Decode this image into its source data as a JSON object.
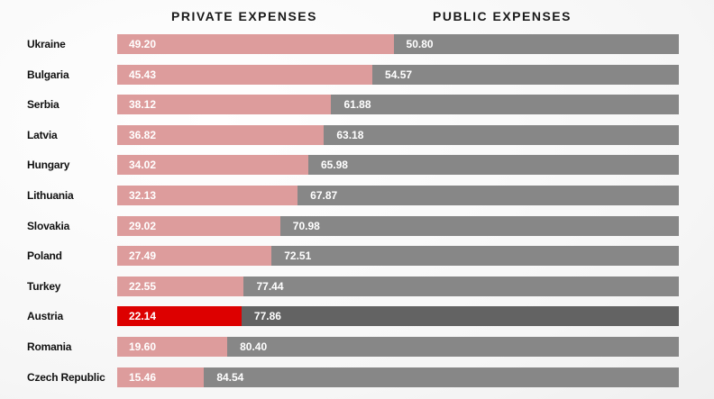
{
  "chart_data": {
    "type": "bar",
    "orientation": "horizontal",
    "stacked": true,
    "title": "",
    "xlim": [
      0,
      100
    ],
    "grid": false,
    "legend_placement": "top",
    "categories": [
      "Ukraine",
      "Bulgaria",
      "Serbia",
      "Latvia",
      "Hungary",
      "Lithuania",
      "Slovakia",
      "Poland",
      "Turkey",
      "Austria",
      "Romania",
      "Czech Republic"
    ],
    "series": [
      {
        "name": "PRIVATE EXPENSES",
        "color": "#dd9c9c",
        "values": [
          49.2,
          45.43,
          38.12,
          36.82,
          34.02,
          32.13,
          29.02,
          27.49,
          22.55,
          22.14,
          19.6,
          15.46
        ]
      },
      {
        "name": "PUBLIC EXPENSES",
        "color": "#878787",
        "values": [
          50.8,
          54.57,
          61.88,
          63.18,
          65.98,
          67.87,
          70.98,
          72.51,
          77.44,
          77.86,
          80.4,
          84.54
        ]
      }
    ],
    "value_labels": {
      "private": [
        "49.20",
        "45.43",
        "38.12",
        "36.82",
        "34.02",
        "32.13",
        "29.02",
        "27.49",
        "22.55",
        "22.14",
        "19.60",
        "15.46"
      ],
      "public": [
        "50.80",
        "54.57",
        "61.88",
        "63.18",
        "65.98",
        "67.87",
        "70.98",
        "72.51",
        "77.44",
        "77.86",
        "80.40",
        "84.54"
      ]
    },
    "highlight": {
      "category": "Austria",
      "private_color": "#dd0000",
      "public_color": "#636363"
    }
  }
}
